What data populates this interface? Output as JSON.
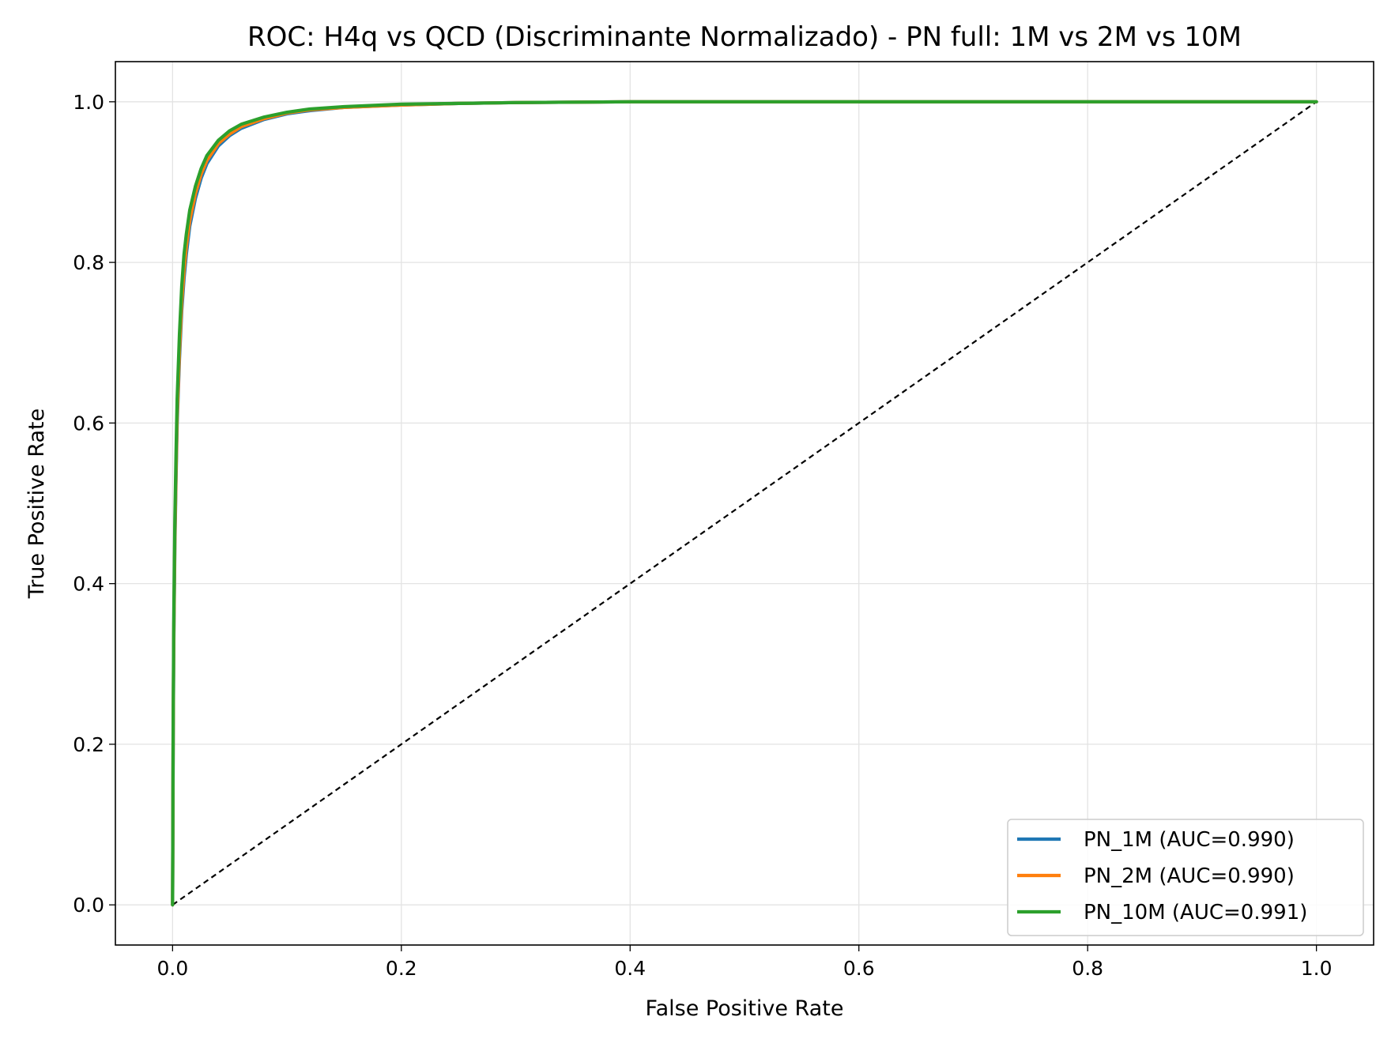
{
  "chart_data": {
    "type": "line",
    "title": "ROC: H4q vs QCD (Discriminante Normalizado) - PN full: 1M vs 2M vs 10M",
    "xlabel": "False Positive Rate",
    "ylabel": "True Positive Rate",
    "xlim": [
      -0.05,
      1.05
    ],
    "ylim": [
      -0.05,
      1.05
    ],
    "xticks": [
      0.0,
      0.2,
      0.4,
      0.6,
      0.8,
      1.0
    ],
    "xtick_labels": [
      "0.0",
      "0.2",
      "0.4",
      "0.6",
      "0.8",
      "1.0"
    ],
    "yticks": [
      0.0,
      0.2,
      0.4,
      0.6,
      0.8,
      1.0
    ],
    "ytick_labels": [
      "0.0",
      "0.2",
      "0.4",
      "0.6",
      "0.8",
      "1.0"
    ],
    "grid": true,
    "legend_position": "lower-right",
    "series": [
      {
        "name": "PN_1M (AUC=0.990)",
        "color": "#1f77b4",
        "x": [
          0.0,
          0.0005,
          0.001,
          0.002,
          0.003,
          0.004,
          0.006,
          0.008,
          0.01,
          0.012,
          0.015,
          0.02,
          0.025,
          0.03,
          0.04,
          0.05,
          0.06,
          0.08,
          0.1,
          0.12,
          0.15,
          0.2,
          0.25,
          0.3,
          0.4,
          0.6,
          0.8,
          1.0
        ],
        "y": [
          0.0,
          0.2,
          0.32,
          0.45,
          0.53,
          0.6,
          0.68,
          0.74,
          0.78,
          0.81,
          0.845,
          0.88,
          0.905,
          0.923,
          0.945,
          0.958,
          0.967,
          0.978,
          0.985,
          0.989,
          0.993,
          0.996,
          0.998,
          0.999,
          1.0,
          1.0,
          1.0,
          1.0
        ]
      },
      {
        "name": "PN_2M (AUC=0.990)",
        "color": "#ff7f0e",
        "x": [
          0.0,
          0.0005,
          0.001,
          0.002,
          0.003,
          0.004,
          0.006,
          0.008,
          0.01,
          0.012,
          0.015,
          0.02,
          0.025,
          0.03,
          0.04,
          0.05,
          0.06,
          0.08,
          0.1,
          0.12,
          0.15,
          0.2,
          0.25,
          0.3,
          0.4,
          0.6,
          0.8,
          1.0
        ],
        "y": [
          0.0,
          0.21,
          0.33,
          0.46,
          0.54,
          0.61,
          0.69,
          0.75,
          0.79,
          0.82,
          0.852,
          0.886,
          0.91,
          0.927,
          0.948,
          0.96,
          0.969,
          0.979,
          0.986,
          0.99,
          0.993,
          0.996,
          0.998,
          0.999,
          1.0,
          1.0,
          1.0,
          1.0
        ]
      },
      {
        "name": "PN_10M (AUC=0.991)",
        "color": "#2ca02c",
        "x": [
          0.0,
          0.0005,
          0.001,
          0.002,
          0.003,
          0.004,
          0.006,
          0.008,
          0.01,
          0.012,
          0.015,
          0.02,
          0.025,
          0.03,
          0.04,
          0.05,
          0.06,
          0.08,
          0.1,
          0.12,
          0.15,
          0.2,
          0.25,
          0.3,
          0.4,
          0.6,
          0.8,
          1.0
        ],
        "y": [
          0.0,
          0.22,
          0.35,
          0.48,
          0.56,
          0.63,
          0.71,
          0.77,
          0.81,
          0.835,
          0.865,
          0.895,
          0.917,
          0.933,
          0.952,
          0.964,
          0.972,
          0.981,
          0.987,
          0.991,
          0.994,
          0.997,
          0.998,
          0.999,
          1.0,
          1.0,
          1.0,
          1.0
        ]
      }
    ],
    "reference_line": {
      "x": [
        0.0,
        1.0
      ],
      "y": [
        0.0,
        1.0
      ],
      "color": "#000000",
      "style": "dashed"
    }
  }
}
